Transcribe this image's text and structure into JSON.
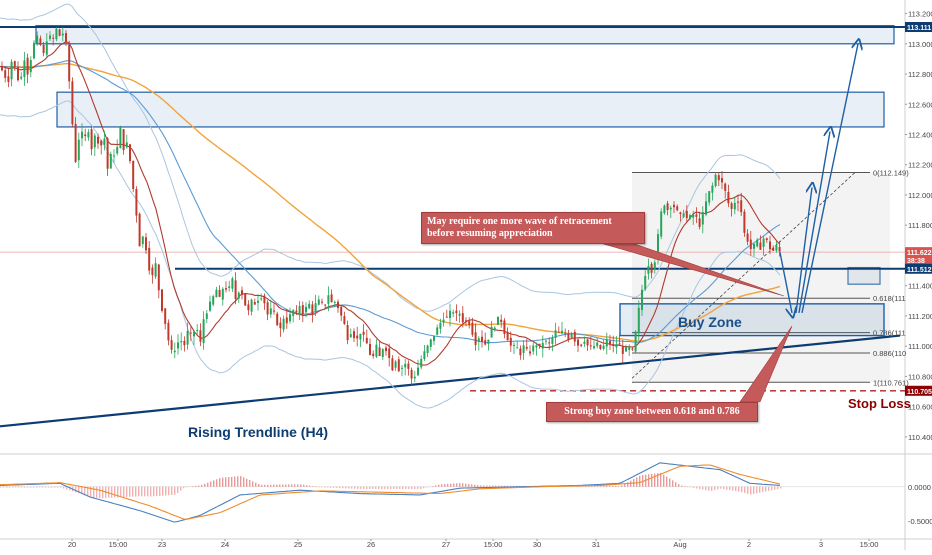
{
  "chart_data": [
    {
      "type": "line",
      "series": [
        {
          "values": [
            [
              0,
              112.85
            ],
            [
              4,
              112.8
            ],
            [
              8,
              112.75
            ],
            [
              12,
              112.9
            ],
            [
              16,
              112.82
            ],
            [
              20,
              112.72
            ],
            [
              24,
              112.92
            ],
            [
              28,
              112.8
            ],
            [
              32,
              112.95
            ],
            [
              36,
              113.05
            ],
            [
              40,
              113.0
            ],
            [
              44,
              112.92
            ],
            [
              48,
              113.08
            ],
            [
              52,
              113.0
            ],
            [
              56,
              113.1
            ],
            [
              60,
              113.05
            ],
            [
              64,
              113.08
            ],
            [
              67,
              112.95
            ],
            [
              72,
              112.5
            ],
            [
              76,
              112.2
            ],
            [
              80,
              112.45
            ],
            [
              84,
              112.35
            ],
            [
              88,
              112.45
            ],
            [
              92,
              112.3
            ],
            [
              96,
              112.42
            ],
            [
              100,
              112.3
            ],
            [
              104,
              112.4
            ],
            [
              108,
              112.15
            ],
            [
              112,
              112.3
            ],
            [
              116,
              112.25
            ],
            [
              120,
              112.45
            ],
            [
              124,
              112.3
            ],
            [
              128,
              112.35
            ],
            [
              132,
              112.1
            ],
            [
              136,
              111.9
            ],
            [
              140,
              111.65
            ],
            [
              144,
              111.75
            ],
            [
              148,
              111.55
            ],
            [
              152,
              111.45
            ],
            [
              156,
              111.55
            ],
            [
              160,
              111.3
            ],
            [
              164,
              111.2
            ],
            [
              168,
              111.05
            ],
            [
              172,
              110.95
            ],
            [
              176,
              111.0
            ],
            [
              180,
              111.05
            ],
            [
              184,
              111.0
            ],
            [
              188,
              111.1
            ],
            [
              192,
              111.05
            ],
            [
              196,
              111.15
            ],
            [
              200,
              111.0
            ],
            [
              204,
              111.2
            ],
            [
              208,
              111.25
            ],
            [
              212,
              111.3
            ],
            [
              216,
              111.38
            ],
            [
              220,
              111.3
            ],
            [
              224,
              111.42
            ],
            [
              228,
              111.35
            ],
            [
              232,
              111.45
            ],
            [
              236,
              111.3
            ],
            [
              240,
              111.4
            ],
            [
              244,
              111.3
            ],
            [
              248,
              111.22
            ],
            [
              252,
              111.3
            ],
            [
              256,
              111.28
            ],
            [
              260,
              111.35
            ],
            [
              264,
              111.3
            ],
            [
              268,
              111.2
            ],
            [
              272,
              111.25
            ],
            [
              276,
              111.18
            ],
            [
              280,
              111.1
            ],
            [
              284,
              111.2
            ],
            [
              288,
              111.15
            ],
            [
              292,
              111.25
            ],
            [
              296,
              111.2
            ],
            [
              300,
              111.28
            ],
            [
              304,
              111.2
            ],
            [
              308,
              111.3
            ],
            [
              312,
              111.22
            ],
            [
              316,
              111.28
            ],
            [
              320,
              111.3
            ],
            [
              324,
              111.25
            ],
            [
              328,
              111.35
            ],
            [
              332,
              111.28
            ],
            [
              336,
              111.3
            ],
            [
              340,
              111.22
            ],
            [
              344,
              111.15
            ],
            [
              348,
              111.05
            ],
            [
              352,
              111.12
            ],
            [
              356,
              111.02
            ],
            [
              360,
              111.1
            ],
            [
              364,
              111.05
            ],
            [
              368,
              111.0
            ],
            [
              372,
              110.9
            ],
            [
              376,
              111.0
            ],
            [
              380,
              110.92
            ],
            [
              384,
              111.02
            ],
            [
              388,
              110.95
            ],
            [
              392,
              110.85
            ],
            [
              396,
              110.92
            ],
            [
              400,
              110.82
            ],
            [
              404,
              110.9
            ],
            [
              408,
              110.85
            ],
            [
              412,
              110.78
            ],
            [
              416,
              110.82
            ],
            [
              420,
              110.9
            ],
            [
              424,
              110.95
            ],
            [
              428,
              111.0
            ],
            [
              432,
              111.05
            ],
            [
              436,
              111.1
            ],
            [
              440,
              111.15
            ],
            [
              444,
              111.2
            ],
            [
              448,
              111.18
            ],
            [
              452,
              111.25
            ],
            [
              456,
              111.2
            ],
            [
              460,
              111.22
            ],
            [
              464,
              111.15
            ],
            [
              468,
              111.18
            ],
            [
              472,
              111.1
            ],
            [
              476,
              111.02
            ],
            [
              480,
              111.08
            ],
            [
              484,
              111.0
            ],
            [
              488,
              111.05
            ],
            [
              492,
              111.12
            ],
            [
              496,
              111.15
            ],
            [
              500,
              111.2
            ],
            [
              504,
              111.1
            ],
            [
              508,
              111.05
            ],
            [
              512,
              110.98
            ],
            [
              516,
              111.0
            ],
            [
              520,
              110.95
            ],
            [
              524,
              111.0
            ],
            [
              528,
              110.95
            ],
            [
              532,
              110.98
            ],
            [
              536,
              111.02
            ],
            [
              540,
              110.98
            ],
            [
              544,
              111.05
            ],
            [
              548,
              111.0
            ],
            [
              552,
              111.05
            ],
            [
              556,
              111.1
            ],
            [
              560,
              111.08
            ],
            [
              564,
              111.1
            ],
            [
              568,
              111.05
            ],
            [
              572,
              111.1
            ],
            [
              576,
              111.02
            ],
            [
              580,
              111.0
            ],
            [
              584,
              111.05
            ],
            [
              588,
              111.0
            ],
            [
              592,
              110.98
            ],
            [
              596,
              111.02
            ],
            [
              600,
              110.98
            ],
            [
              604,
              111.0
            ],
            [
              608,
              111.05
            ],
            [
              612,
              110.98
            ],
            [
              616,
              111.02
            ],
            [
              620,
              111.0
            ],
            [
              624,
              110.95
            ],
            [
              628,
              111.0
            ],
            [
              632,
              110.95
            ],
            [
              636,
              111.1
            ],
            [
              640,
              111.3
            ],
            [
              644,
              111.45
            ],
            [
              648,
              111.55
            ],
            [
              652,
              111.5
            ],
            [
              656,
              111.6
            ],
            [
              660,
              111.85
            ],
            [
              664,
              111.95
            ],
            [
              668,
              111.9
            ],
            [
              672,
              111.95
            ],
            [
              676,
              111.9
            ],
            [
              680,
              111.85
            ],
            [
              684,
              111.9
            ],
            [
              688,
              111.82
            ],
            [
              692,
              111.88
            ],
            [
              696,
              111.85
            ],
            [
              700,
              111.8
            ],
            [
              704,
              111.9
            ],
            [
              708,
              112.0
            ],
            [
              712,
              112.05
            ],
            [
              716,
              112.14
            ],
            [
              720,
              112.1
            ],
            [
              724,
              112.05
            ],
            [
              728,
              111.95
            ],
            [
              732,
              111.9
            ],
            [
              736,
              111.98
            ],
            [
              740,
              111.95
            ],
            [
              744,
              111.75
            ],
            [
              748,
              111.7
            ],
            [
              752,
              111.62
            ],
            [
              756,
              111.7
            ],
            [
              760,
              111.65
            ],
            [
              764,
              111.72
            ],
            [
              768,
              111.68
            ],
            [
              772,
              111.62
            ],
            [
              776,
              111.66
            ],
            [
              780,
              111.62
            ]
          ]
        }
      ],
      "xlabel": "",
      "ylabel": "",
      "x_ticks": [
        {
          "label": "20",
          "x": 72
        },
        {
          "label": "15:00",
          "x": 118
        },
        {
          "label": "23",
          "x": 162
        },
        {
          "label": "24",
          "x": 225
        },
        {
          "label": "25",
          "x": 298
        },
        {
          "label": "26",
          "x": 371
        },
        {
          "label": "27",
          "x": 446
        },
        {
          "label": "15:00",
          "x": 493
        },
        {
          "label": "30",
          "x": 537
        },
        {
          "label": "31",
          "x": 596
        },
        {
          "label": "Aug",
          "x": 680
        },
        {
          "label": "2",
          "x": 749
        },
        {
          "label": "3",
          "x": 821
        },
        {
          "label": "15:00",
          "x": 869
        }
      ],
      "y_ticks": [
        "113.200",
        "113.000",
        "112.800",
        "112.600",
        "112.400",
        "112.200",
        "112.000",
        "111.800",
        "111.600",
        "111.400",
        "111.200",
        "111.000",
        "110.800",
        "110.600",
        "110.400"
      ],
      "ylim": [
        110.3,
        113.25
      ],
      "xlim": [
        0,
        905
      ],
      "price_tags": [
        {
          "label": "113.111",
          "value": 113.111,
          "color": "#0d3c73"
        },
        {
          "label": "111.622",
          "value": 111.622,
          "color": "#d9534f"
        },
        {
          "label": "38:38",
          "value": 111.57,
          "color": "#d9534f"
        },
        {
          "label": "111.512",
          "value": 111.512,
          "color": "#0d3c73"
        },
        {
          "label": "110.705",
          "value": 110.705,
          "color": "#8b0000"
        }
      ],
      "fib_levels": [
        {
          "label": "0(112.149)",
          "value": 112.149
        },
        {
          "label": "0.618(111",
          "value": 111.317
        },
        {
          "label": "0.786(111",
          "value": 111.09
        },
        {
          "label": "0.886(110",
          "value": 110.955
        },
        {
          "label": "1(110.761)",
          "value": 110.761
        }
      ],
      "annotations": {
        "buy_zone": "Buy Zone",
        "stop_loss": "Stop Loss",
        "trendline": "Rising Trendline (H4)",
        "callout_top": "May require one more wave of retracement before resuming appreciation",
        "callout_bottom": "Strong buy zone between 0.618 and 0.786"
      },
      "colors": {
        "bull": "#26a65b",
        "bear": "#c0392b",
        "zone": "#1f5fa6",
        "trend": "#0d3c73",
        "ma_slow": "#f2a33a",
        "ma_mid": "#5b9bd5",
        "ma_fast": "#b03a2e",
        "band": "#a9c6e0"
      }
    },
    {
      "type": "line",
      "series": [
        {
          "values": [
            [
              0,
              0.02
            ],
            [
              60,
              0.05
            ],
            [
              90,
              -0.15
            ],
            [
              140,
              -0.35
            ],
            [
              175,
              -0.52
            ],
            [
              200,
              -0.42
            ],
            [
              240,
              -0.12
            ],
            [
              300,
              -0.05
            ],
            [
              360,
              -0.1
            ],
            [
              420,
              -0.12
            ],
            [
              460,
              -0.02
            ],
            [
              520,
              0.0
            ],
            [
              580,
              0.02
            ],
            [
              620,
              0.05
            ],
            [
              660,
              0.35
            ],
            [
              690,
              0.3
            ],
            [
              720,
              0.25
            ],
            [
              750,
              0.05
            ],
            [
              780,
              0.02
            ]
          ]
        },
        {
          "values": [
            [
              0,
              0.03
            ],
            [
              60,
              0.06
            ],
            [
              100,
              -0.05
            ],
            [
              150,
              -0.28
            ],
            [
              185,
              -0.48
            ],
            [
              220,
              -0.38
            ],
            [
              260,
              -0.12
            ],
            [
              320,
              -0.06
            ],
            [
              380,
              -0.08
            ],
            [
              440,
              -0.1
            ],
            [
              480,
              -0.03
            ],
            [
              540,
              0.0
            ],
            [
              600,
              0.02
            ],
            [
              640,
              0.06
            ],
            [
              680,
              0.3
            ],
            [
              710,
              0.32
            ],
            [
              740,
              0.18
            ],
            [
              780,
              0.04
            ]
          ]
        }
      ],
      "xlabel": "",
      "ylabel": "",
      "y_ticks": [
        "0.0000",
        "-0.5000"
      ],
      "ylim": [
        -0.75,
        0.45
      ]
    }
  ]
}
